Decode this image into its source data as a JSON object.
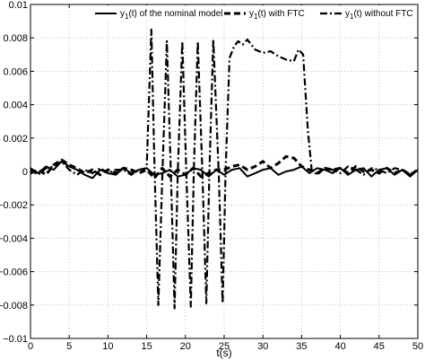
{
  "chart_data": {
    "type": "line",
    "xlabel": "t(s)",
    "ylabel": "",
    "xlim": [
      0,
      50
    ],
    "ylim": [
      -0.01,
      0.01
    ],
    "xticks": [
      0,
      5,
      10,
      15,
      20,
      25,
      30,
      35,
      40,
      45,
      50
    ],
    "yticks": [
      -0.01,
      -0.008,
      -0.006,
      -0.004,
      -0.002,
      0,
      0.002,
      0.004,
      0.006,
      0.008,
      0.01
    ],
    "xtick_labels": [
      "0",
      "5",
      "10",
      "15",
      "20",
      "25",
      "30",
      "35",
      "40",
      "45",
      "50"
    ],
    "ytick_labels": [
      "−0.01",
      "−0.008",
      "−0.006",
      "−0.004",
      "−0.002",
      "0",
      "0.002",
      "0.004",
      "0.006",
      "0.008",
      "0.01"
    ],
    "grid": true,
    "legend_position": "top",
    "legend": {
      "entries": [
        {
          "sym": "y",
          "sub": "1",
          "rest": "(t) of the nominal model"
        },
        {
          "sym": "y",
          "sub": "1",
          "rest": "(t) with FTC"
        },
        {
          "sym": "y",
          "sub": "1",
          "rest": "(t) without FTC"
        }
      ]
    },
    "series": [
      {
        "style": "solid",
        "color": "#000000",
        "x": [
          0,
          1,
          2,
          3,
          4,
          5,
          6,
          7,
          8,
          9,
          10,
          11,
          12,
          13,
          14,
          15,
          16,
          17,
          18,
          19,
          20,
          21,
          22,
          23,
          24,
          25,
          26,
          27,
          28,
          29,
          30,
          31,
          32,
          33,
          34,
          35,
          36,
          37,
          38,
          39,
          40,
          41,
          42,
          43,
          44,
          45,
          46,
          47,
          48,
          49,
          50
        ],
        "y": [
          0.0002,
          -0.0001,
          0.0003,
          0.0001,
          0.0006,
          0.0003,
          0.0001,
          -0.0002,
          -0.0004,
          0.0001,
          -0.0001,
          -0.0002,
          0.0002,
          -0.0001,
          0.0001,
          0.0002,
          -0.0002,
          -0.0001,
          0.0001,
          -0.0003,
          -0.0002,
          0.0002,
          0.0001,
          -0.0003,
          0.0001,
          -0.0002,
          0.0001,
          0.0002,
          -0.0003,
          -0.0001,
          0.0001,
          0.0002,
          -0.0002,
          0,
          0.0001,
          0.0003,
          -0.0001,
          0.0002,
          0.0001,
          -0.0001,
          0.0002,
          -0.0002,
          0.0001,
          0.0002,
          -0.0003,
          0.0001,
          0.0002,
          -0.0002,
          0.0001,
          -0.0003,
          0.0001
        ]
      },
      {
        "style": "dashed",
        "color": "#000000",
        "x": [
          0,
          1,
          2,
          3,
          4,
          5,
          6,
          7,
          8,
          9,
          10,
          11,
          12,
          13,
          14,
          15,
          16,
          17,
          18,
          19,
          20,
          21,
          22,
          23,
          24,
          25,
          26,
          27,
          28,
          29,
          30,
          31,
          32,
          33,
          34,
          35,
          36,
          37,
          38,
          39,
          40,
          41,
          42,
          43,
          44,
          45,
          46,
          47,
          48,
          49,
          50
        ],
        "y": [
          -0.0001,
          0.0001,
          -0.0002,
          0.0004,
          0.0007,
          0.0004,
          0.0002,
          -0.0001,
          0.0001,
          -0.0002,
          0.0001,
          -0.0001,
          0.0002,
          0.0001,
          -0.0001,
          0.0001,
          -0.0004,
          0.0002,
          -0.0003,
          0.0001,
          -0.0002,
          0.0002,
          -0.0003,
          -0.0001,
          0.0001,
          0.0001,
          0.0003,
          0.0004,
          0.0001,
          0.0003,
          0.0006,
          0.0002,
          0.0005,
          0.0009,
          0.0008,
          0.0003,
          0.0001,
          -0.0001,
          0.0002,
          0.0001,
          0.0002,
          -0.0001,
          0.0003,
          0,
          0.0001,
          -0.0001,
          0.0002,
          -0.0001,
          0.0001,
          -0.0002,
          0.0001
        ]
      },
      {
        "style": "dashdot",
        "color": "#000000",
        "x": [
          0,
          1,
          2,
          3,
          4,
          5,
          6,
          7,
          8,
          9,
          10,
          11,
          12,
          13,
          14,
          15,
          15.6,
          16.0,
          16.5,
          17.0,
          17.6,
          18.1,
          18.6,
          19.0,
          19.6,
          20.1,
          20.7,
          21.1,
          21.6,
          22.2,
          22.7,
          23.1,
          23.6,
          24.3,
          24.8,
          25.2,
          25.7,
          26.3,
          26.8,
          27.4,
          28,
          29,
          30,
          31,
          32,
          33,
          34,
          34.6,
          35.2,
          35.8,
          36.3,
          37,
          38,
          39,
          40,
          41,
          42,
          43,
          44,
          45,
          46,
          47,
          48,
          49,
          50
        ],
        "y": [
          0.0001,
          -0.0002,
          0.0002,
          0.0003,
          0.0006,
          0.0001,
          -0.0002,
          0.0001,
          -0.0001,
          0.0002,
          -0.0001,
          0.0001,
          0.0001,
          -0.0002,
          0.0001,
          0.0002,
          0.0085,
          0.0005,
          -0.008,
          -0.0005,
          0.0078,
          0.0002,
          -0.0082,
          -0.0002,
          0.0078,
          0.0001,
          -0.0081,
          0.0003,
          0.0078,
          -0.0002,
          -0.0079,
          0.0001,
          0.0079,
          -0.0002,
          -0.0079,
          0.0002,
          0.0068,
          0.0075,
          0.0078,
          0.0076,
          0.0079,
          0.0073,
          0.0071,
          0.0072,
          0.0069,
          0.0067,
          0.0066,
          0.0073,
          0.007,
          0.0025,
          0.0001,
          -0.0002,
          0.0002,
          0.0001,
          -0.0001,
          0.0003,
          0.0001,
          -0.0002,
          0.0002,
          0.0001,
          -0.0001,
          0.0002,
          0.0001,
          -0.0002,
          0.0001
        ]
      }
    ]
  }
}
